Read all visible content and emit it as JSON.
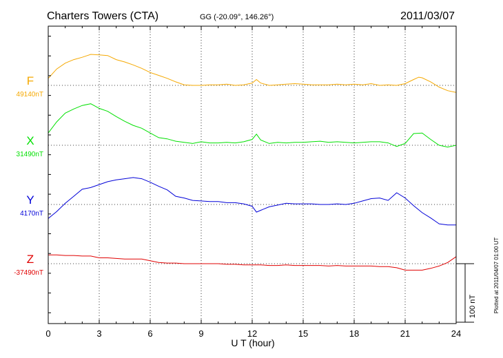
{
  "chart_data": {
    "type": "line",
    "title": "Charters Towers (CTA)",
    "subtitle": "GG (-20.09°, 146.26°)",
    "date": "2011/03/07",
    "xlabel": "U T (hour)",
    "xlim": [
      0,
      24
    ],
    "xticks": [
      "0",
      "3",
      "6",
      "9",
      "12",
      "15",
      "18",
      "21",
      "24"
    ],
    "grid": true,
    "scale_bar_label": "100 nT",
    "scale_bar_nT": 100,
    "footer": "Plotted at 2011/04/07 01:00 UT",
    "series": [
      {
        "name": "F",
        "baseline_label": "49140nT",
        "baseline_nT": 49140,
        "color": "#f5a800",
        "x": [
          0,
          0.5,
          1,
          1.5,
          2,
          2.5,
          3,
          3.5,
          4,
          4.5,
          5,
          5.5,
          6,
          6.5,
          7,
          7.5,
          8,
          8.5,
          9,
          9.5,
          10,
          10.5,
          11,
          11.5,
          12,
          12.25,
          12.5,
          13,
          13.5,
          14,
          14.5,
          15,
          15.5,
          16,
          16.5,
          17,
          17.5,
          18,
          18.5,
          19,
          19.5,
          20,
          20.5,
          21,
          21.5,
          21.8,
          22,
          22.5,
          23,
          23.5,
          24
        ],
        "values": [
          12,
          28,
          38,
          44,
          48,
          53,
          52,
          51,
          44,
          40,
          35,
          29,
          22,
          17,
          12,
          6,
          1,
          0,
          0,
          1,
          1,
          2,
          0,
          1,
          4,
          10,
          4,
          0,
          1,
          2,
          3,
          2,
          1,
          1,
          1,
          2,
          1,
          2,
          1,
          3,
          0,
          1,
          0,
          3,
          10,
          14,
          13,
          6,
          -3,
          -9,
          -12
        ]
      },
      {
        "name": "X",
        "baseline_label": "31490nT",
        "baseline_nT": 31490,
        "color": "#00e000",
        "x": [
          0,
          0.5,
          1,
          1.5,
          2,
          2.5,
          3,
          3.5,
          4,
          4.5,
          5,
          5.5,
          6,
          6.5,
          7,
          7.5,
          8,
          8.5,
          9,
          9.5,
          10,
          10.5,
          11,
          11.5,
          12,
          12.25,
          12.5,
          13,
          13.5,
          14,
          14.5,
          15,
          15.5,
          16,
          16.5,
          17,
          17.5,
          18,
          18.5,
          19,
          19.5,
          20,
          20.5,
          21,
          21.5,
          22,
          22.5,
          23,
          23.5,
          24
        ],
        "values": [
          21,
          40,
          55,
          62,
          68,
          71,
          63,
          58,
          49,
          41,
          34,
          29,
          21,
          13,
          11,
          7,
          5,
          3,
          6,
          4,
          4,
          5,
          4,
          6,
          10,
          19,
          9,
          3,
          5,
          4,
          5,
          5,
          6,
          7,
          5,
          6,
          5,
          4,
          5,
          6,
          6,
          4,
          -2,
          3,
          20,
          21,
          10,
          0,
          -3,
          0
        ]
      },
      {
        "name": "Y",
        "baseline_label": "4170nT",
        "baseline_nT": 4170,
        "color": "#0000d8",
        "x": [
          0,
          0.5,
          1,
          1.5,
          2,
          2.5,
          3,
          3.5,
          4,
          4.5,
          5,
          5.5,
          6,
          6.5,
          7,
          7.5,
          8,
          8.5,
          9,
          9.5,
          10,
          10.5,
          11,
          11.5,
          12,
          12.25,
          12.5,
          13,
          13.5,
          14,
          14.5,
          15,
          15.5,
          16,
          16.5,
          17,
          17.5,
          18,
          18.5,
          19,
          19.5,
          20,
          20.5,
          21,
          21.5,
          22,
          22.5,
          23,
          23.5,
          24
        ],
        "values": [
          -24,
          -12,
          2,
          14,
          26,
          29,
          34,
          39,
          42,
          44,
          46,
          44,
          38,
          31,
          25,
          14,
          11,
          7,
          6,
          5,
          5,
          3,
          3,
          1,
          -3,
          -13,
          -10,
          -4,
          -1,
          2,
          1,
          1,
          1,
          0,
          0,
          1,
          0,
          2,
          6,
          10,
          11,
          7,
          20,
          11,
          -2,
          -14,
          -23,
          -33,
          -35,
          -35
        ]
      },
      {
        "name": "Z",
        "baseline_label": "-37490nT",
        "baseline_nT": -37490,
        "color": "#e00000",
        "x": [
          0,
          0.5,
          1,
          1.5,
          2,
          2.5,
          3,
          3.5,
          4,
          4.5,
          5,
          5.5,
          6,
          6.5,
          7,
          7.5,
          8,
          8.5,
          9,
          9.5,
          10,
          10.5,
          11,
          11.5,
          12,
          12.5,
          13,
          13.5,
          14,
          14.5,
          15,
          15.5,
          16,
          16.5,
          17,
          17.5,
          18,
          18.5,
          19,
          19.5,
          20,
          20.5,
          21,
          21.5,
          22,
          22.5,
          23,
          23.5,
          24
        ],
        "values": [
          15,
          15,
          14,
          14,
          13,
          13,
          10,
          10,
          9,
          8,
          8,
          8,
          5,
          2,
          1,
          1,
          0,
          0,
          0,
          0,
          0,
          -1,
          -1,
          -2,
          -2,
          -2,
          -3,
          -3,
          -2,
          -3,
          -3,
          -3,
          -3,
          -4,
          -3,
          -4,
          -4,
          -4,
          -4,
          -5,
          -5,
          -7,
          -11,
          -11,
          -11,
          -8,
          -4,
          2,
          12
        ]
      }
    ]
  }
}
